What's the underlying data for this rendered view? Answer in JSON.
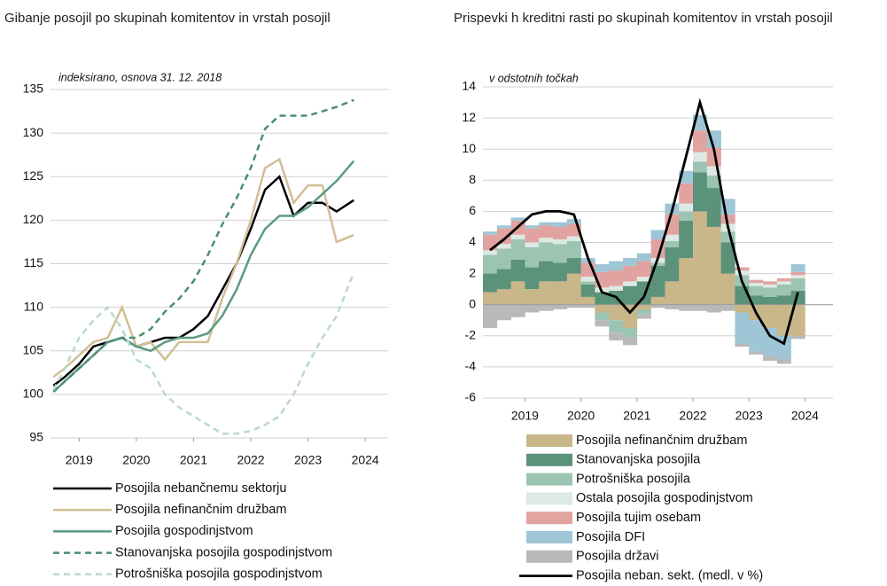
{
  "chart_data": [
    {
      "type": "line",
      "title": "Gibanje posojil po skupinah komitentov in vrstah posojil",
      "annotation": "indeksirano, osnova 31. 12. 2018",
      "x": [
        2018.55,
        2018.75,
        2019,
        2019.25,
        2019.5,
        2019.75,
        2020,
        2020.25,
        2020.5,
        2020.75,
        2021,
        2021.25,
        2021.5,
        2021.75,
        2022,
        2022.25,
        2022.5,
        2022.75,
        2023,
        2023.25,
        2023.5,
        2023.8
      ],
      "xlim": [
        2018.5,
        2024.4
      ],
      "xticks": [
        2019,
        2020,
        2021,
        2022,
        2023,
        2024
      ],
      "ylim": [
        95,
        135
      ],
      "yticks": [
        95,
        100,
        105,
        110,
        115,
        120,
        125,
        130,
        135
      ],
      "grid": true,
      "series": [
        {
          "name": "Posojila nebančnemu sektorju",
          "color": "#000000",
          "dashed": false,
          "values": [
            101,
            102,
            103.5,
            105.5,
            106,
            106.5,
            105.5,
            106,
            106.5,
            106.5,
            107.5,
            109,
            112,
            115,
            119,
            123.5,
            125,
            120.5,
            122,
            122,
            121,
            122.3
          ]
        },
        {
          "name": "Posojila nefinančnim družbam",
          "color": "#d2bf95",
          "dashed": false,
          "values": [
            102,
            103,
            104.5,
            106,
            106.5,
            110,
            105.5,
            106,
            104,
            106,
            106,
            106,
            111,
            115,
            120,
            126,
            127,
            122,
            124,
            124,
            117.5,
            118.3
          ]
        },
        {
          "name": "Posojila gospodinjstvom",
          "color": "#5b9b83",
          "dashed": false,
          "values": [
            100.3,
            101.5,
            103,
            104.5,
            106,
            106.5,
            105.5,
            105,
            106,
            106.5,
            106.5,
            107,
            109,
            112,
            116,
            119,
            120.5,
            120.5,
            121.5,
            123,
            124.5,
            126.8
          ]
        },
        {
          "name": "Stanovanjska posojila gospodinjstvom",
          "color": "#4a8f6e",
          "dashed": true,
          "values": [
            100.3,
            101.5,
            103,
            104.5,
            106,
            106.5,
            106.5,
            107.5,
            109.5,
            111,
            113,
            116,
            119.5,
            122.5,
            126,
            130.5,
            132,
            132,
            132,
            132.5,
            133,
            133.8
          ]
        },
        {
          "name": "Potrošniška posojila gospodinjstvom",
          "color": "#b9d9cd",
          "dashed": true,
          "values": [
            100.5,
            103,
            106.5,
            108.5,
            110,
            107.5,
            104,
            103,
            100,
            98.5,
            97.5,
            96.5,
            95.5,
            95.5,
            95.8,
            96.5,
            97.5,
            100,
            103.5,
            106.5,
            109,
            114
          ]
        }
      ]
    },
    {
      "type": "stacked_bar",
      "title": "Prispevki h kreditni rasti po skupinah komitentov in vrstah posojil",
      "annotation": "v odstotnih točkah",
      "x": [
        2018.375,
        2018.625,
        2018.875,
        2019.125,
        2019.375,
        2019.625,
        2019.875,
        2020.125,
        2020.375,
        2020.625,
        2020.875,
        2021.125,
        2021.375,
        2021.625,
        2021.875,
        2022.125,
        2022.375,
        2022.625,
        2022.875,
        2023.125,
        2023.375,
        2023.625,
        2023.875
      ],
      "xlim": [
        2018.25,
        2024.5
      ],
      "xticks": [
        2019,
        2020,
        2021,
        2022,
        2023,
        2024
      ],
      "ylim": [
        -6,
        14
      ],
      "yticks": [
        -6,
        -4,
        -2,
        0,
        2,
        4,
        6,
        8,
        10,
        12,
        14
      ],
      "grid": true,
      "series": [
        {
          "name": "Posojila nefinančnim družbam",
          "color": "#c9b78a",
          "kind": "bar",
          "values": [
            0.8,
            1,
            1.5,
            1,
            1.5,
            1.5,
            2,
            0.5,
            -0.5,
            -1,
            -1.5,
            -0.3,
            0.5,
            1.5,
            3,
            6,
            5,
            2,
            -0.5,
            -1,
            -1.5,
            -2,
            -2
          ]
        },
        {
          "name": "Stanovanjska posojila",
          "color": "#5b927a",
          "kind": "bar",
          "values": [
            1.2,
            1.3,
            1.4,
            1.4,
            1.3,
            1.2,
            1,
            0.8,
            0.8,
            0.9,
            1.2,
            1.5,
            2,
            2.2,
            2.4,
            2.5,
            2.5,
            2,
            1.2,
            0.6,
            0.5,
            0.6,
            0.9
          ]
        },
        {
          "name": "Potrošniška posojila",
          "color": "#9cc4b2",
          "kind": "bar",
          "values": [
            1.2,
            1.3,
            1.3,
            1.3,
            1.2,
            1.2,
            1.1,
            0.2,
            -0.5,
            -0.8,
            -0.6,
            -0.3,
            0.2,
            0.4,
            0.6,
            0.7,
            0.8,
            0.7,
            0.7,
            0.6,
            0.6,
            0.7,
            0.8
          ]
        },
        {
          "name": "Ostala posojila gospodinjstvom",
          "color": "#dde9e3",
          "kind": "bar",
          "values": [
            0.3,
            0.3,
            0.3,
            0.3,
            0.3,
            0.3,
            0.3,
            0.3,
            0.3,
            0.3,
            0.3,
            0.3,
            0.3,
            0.4,
            0.5,
            0.6,
            0.6,
            0.5,
            0.3,
            0.2,
            0.2,
            0.2,
            0.2
          ]
        },
        {
          "name": "Posojila tujim osebam",
          "color": "#e2a3a0",
          "kind": "bar",
          "values": [
            1,
            1,
            0.9,
            0.9,
            0.8,
            0.8,
            0.8,
            0.9,
            1,
            1,
            1,
            1,
            1.2,
            1.3,
            1.3,
            1.4,
            1.2,
            0.6,
            0.2,
            0.2,
            0.2,
            0.2,
            0.2
          ]
        },
        {
          "name": "Posojila DFI",
          "color": "#9ec6d6",
          "kind": "bar",
          "values": [
            0.2,
            0.2,
            0.2,
            0.2,
            0.2,
            0.3,
            0.3,
            0.3,
            0.5,
            0.6,
            0.5,
            0.5,
            0.6,
            0.7,
            0.8,
            1,
            1.1,
            1,
            -2,
            -2,
            -1.8,
            -1.5,
            0.5
          ]
        },
        {
          "name": "Posojila državi",
          "color": "#b9b9b9",
          "kind": "bar",
          "values": [
            -1.5,
            -1,
            -0.8,
            -0.5,
            -0.4,
            -0.3,
            -0.2,
            -0.2,
            -0.4,
            -0.5,
            -0.5,
            -0.3,
            -0.2,
            -0.3,
            -0.4,
            -0.4,
            -0.5,
            -0.4,
            -0.2,
            -0.2,
            -0.3,
            -0.3,
            -0.2
          ]
        },
        {
          "name": "Posojila neban. sekt. (medl. v %)",
          "color": "#000000",
          "kind": "line",
          "values": [
            3.5,
            4.2,
            5,
            5.8,
            6,
            6,
            5.8,
            3,
            0.8,
            0.5,
            -0.5,
            0.5,
            3,
            6,
            9.5,
            13,
            10,
            5,
            1.5,
            -0.5,
            -2,
            -2.5,
            0.8
          ]
        }
      ]
    }
  ]
}
